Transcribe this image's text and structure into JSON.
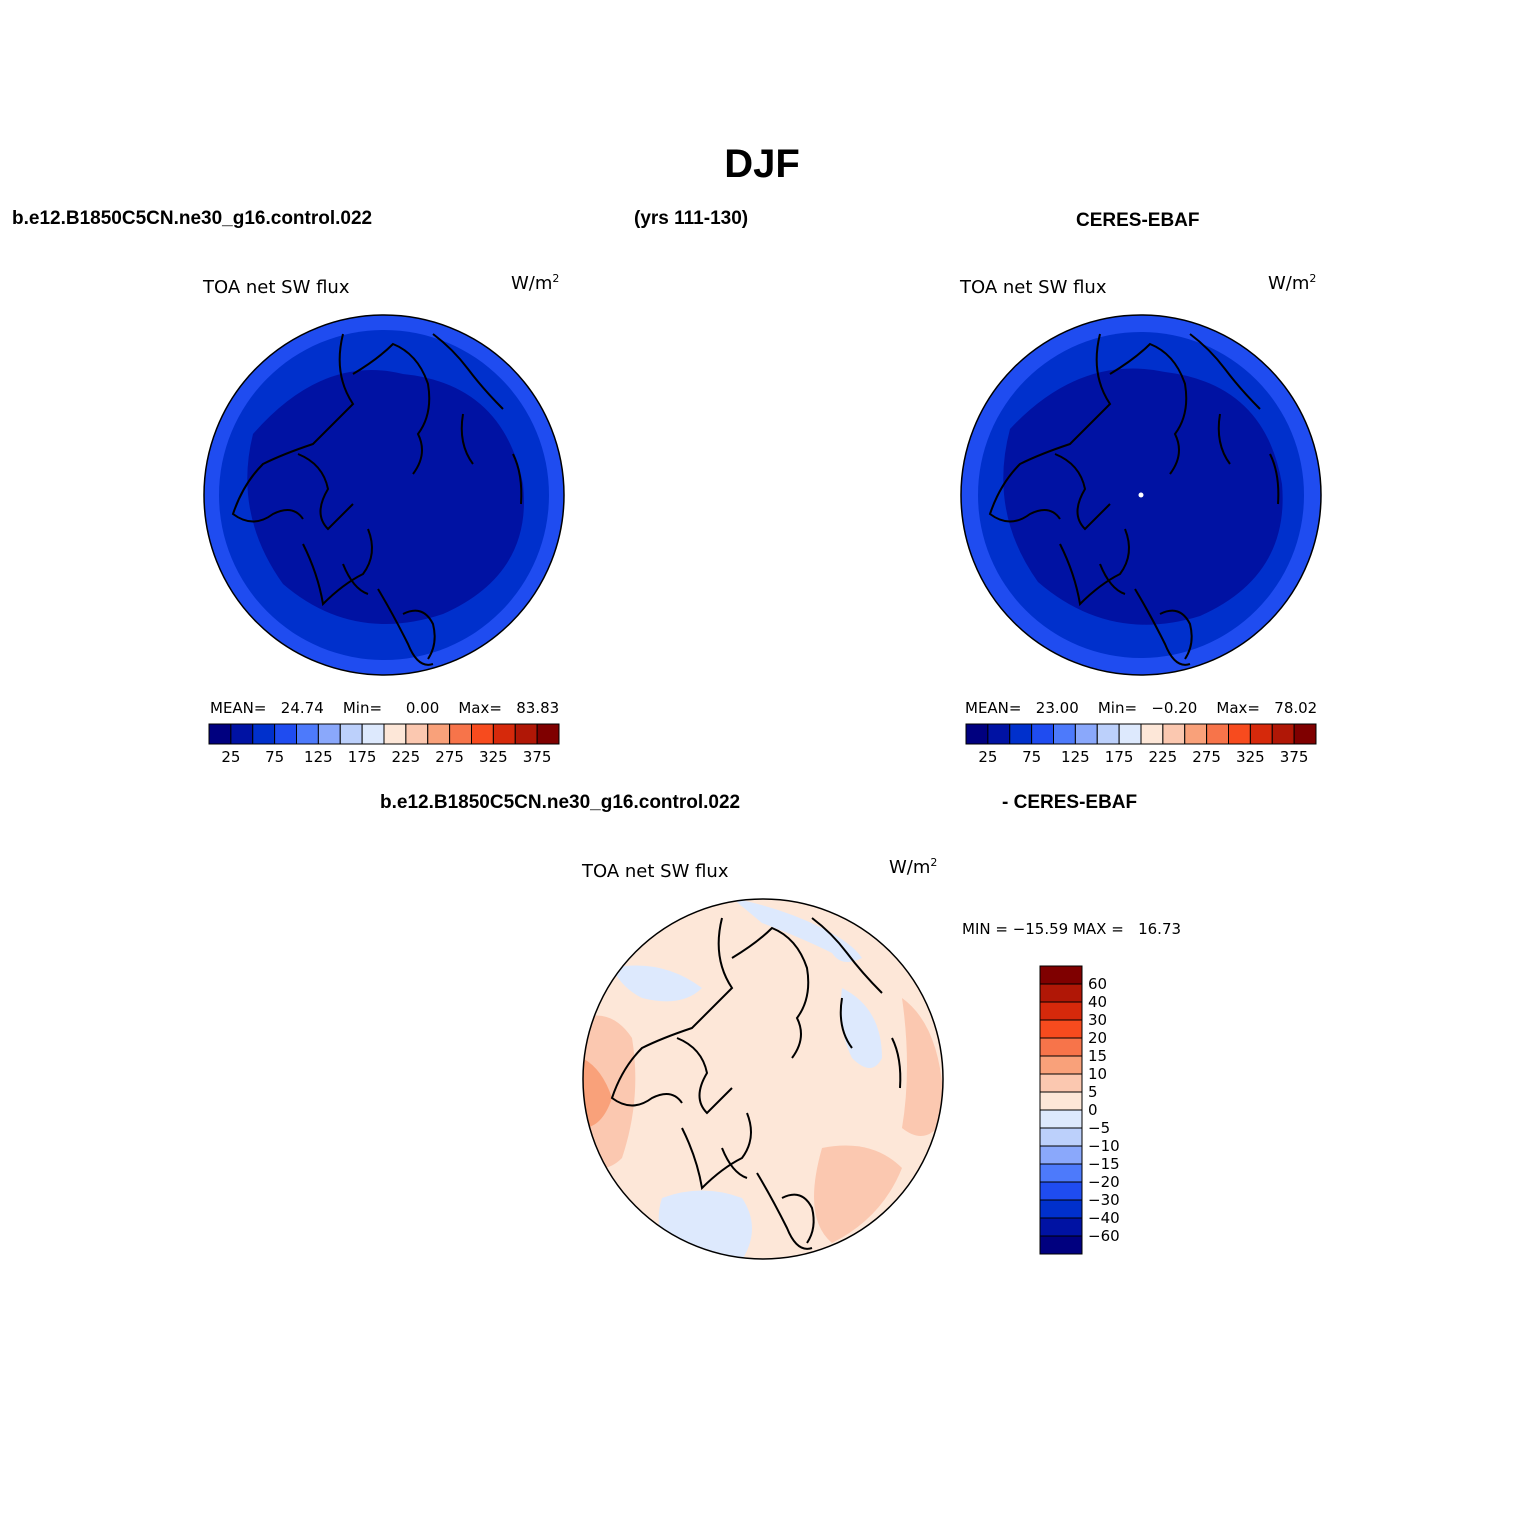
{
  "figure": {
    "title": "DJF",
    "model_case": "b.e12.B1850C5CN.ne30_g16.control.022",
    "years": "(yrs 111-130)",
    "obs_name": "CERES-EBAF",
    "diff_case": "b.e12.B1850C5CN.ne30_g16.control.022",
    "diff_obs": "- CERES-EBAF"
  },
  "panels": [
    {
      "id": "model",
      "variable": "TOA net SW flux",
      "units_base": "W/m",
      "units_exp": "2",
      "stats": {
        "mean_label": "MEAN=",
        "mean": "24.74",
        "min_label": "Min=",
        "min": "0.00",
        "max_label": "Max=",
        "max": "83.83"
      }
    },
    {
      "id": "obs",
      "variable": "TOA net SW flux",
      "units_base": "W/m",
      "units_exp": "2",
      "stats": {
        "mean_label": "MEAN=",
        "mean": "23.00",
        "min_label": "Min=",
        "min": "−0.20",
        "max_label": "Max=",
        "max": "78.02"
      }
    },
    {
      "id": "diff",
      "variable": "TOA net SW flux",
      "units_base": "W/m",
      "units_exp": "2",
      "stats_text": "MIN = −15.59 MAX =   16.73"
    }
  ],
  "colorbar_abs": {
    "colors": [
      "#00007f",
      "#0012a3",
      "#0030cc",
      "#1f4cf0",
      "#4d7afb",
      "#8aa8fb",
      "#bcd0fb",
      "#dde9fd",
      "#fde7d8",
      "#fbc8b0",
      "#f9a17a",
      "#f7744a",
      "#f74b1e",
      "#d6290b",
      "#b01706",
      "#7f0000"
    ],
    "tick_labels": [
      "25",
      "75",
      "125",
      "175",
      "225",
      "275",
      "325",
      "375"
    ]
  },
  "colorbar_diff": {
    "colors": [
      "#7f0000",
      "#b01706",
      "#d6290b",
      "#f74b1e",
      "#f7744a",
      "#f9a17a",
      "#fbc8b0",
      "#fde7d8",
      "#dde9fd",
      "#bcd0fb",
      "#8aa8fb",
      "#4d7afb",
      "#1f4cf0",
      "#0030cc",
      "#0012a3",
      "#00007f"
    ],
    "tick_labels": [
      "60",
      "40",
      "30",
      "20",
      "15",
      "10",
      "5",
      "0",
      "−5",
      "−10",
      "−15",
      "−20",
      "−30",
      "−40",
      "−60"
    ]
  },
  "map_colors": {
    "abs_low": "#0012a3",
    "abs_mid": "#0030cc",
    "abs_edge": "#1f4cf0",
    "diff_base": "#fde7d8",
    "diff_light_blue": "#dde9fd",
    "diff_pos": "#fbc8b0",
    "diff_pos2": "#f9a17a",
    "coast": "#000000"
  }
}
